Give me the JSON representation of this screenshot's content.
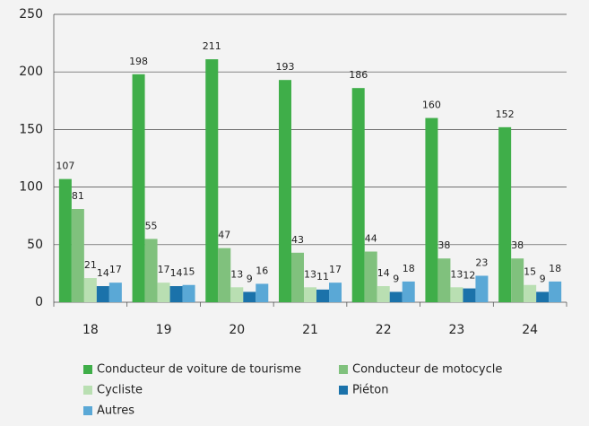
{
  "chart_data": {
    "type": "bar",
    "categories": [
      "18",
      "19",
      "20",
      "21",
      "22",
      "23",
      "24"
    ],
    "series": [
      {
        "name": "Conducteur de voiture de tourisme",
        "color": "#3fae49",
        "values": [
          107,
          198,
          211,
          193,
          186,
          160,
          152
        ]
      },
      {
        "name": "Conducteur de motocycle",
        "color": "#80c17d",
        "values": [
          81,
          55,
          47,
          43,
          44,
          38,
          38
        ]
      },
      {
        "name": "Cycliste",
        "color": "#b9dfb2",
        "values": [
          21,
          17,
          13,
          13,
          14,
          13,
          15
        ]
      },
      {
        "name": "Piéton",
        "color": "#1b72aa",
        "values": [
          14,
          14,
          9,
          11,
          9,
          12,
          9
        ]
      },
      {
        "name": "Autres",
        "color": "#5aa8d6",
        "values": [
          17,
          15,
          16,
          17,
          18,
          23,
          18
        ]
      }
    ],
    "ylim": [
      0,
      250
    ],
    "yticks": [
      0,
      50,
      100,
      150,
      200,
      250
    ],
    "grid": true
  }
}
